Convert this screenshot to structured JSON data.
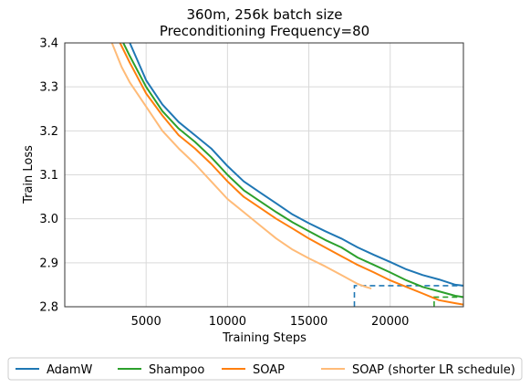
{
  "chart_data": {
    "type": "line",
    "title": [
      "360m, 256k batch size",
      "Preconditioning Frequency=80"
    ],
    "xlabel": "Training Steps",
    "ylabel": "Train Loss",
    "xlim": [
      0,
      24500
    ],
    "ylim": [
      2.8,
      3.4
    ],
    "xticks": [
      5000,
      10000,
      15000,
      20000
    ],
    "xtick_labels": [
      "5000",
      "10000",
      "15000",
      "20000"
    ],
    "yticks": [
      2.8,
      2.9,
      3.0,
      3.1,
      3.2,
      3.3,
      3.4
    ],
    "ytick_labels": [
      "2.8",
      "2.9",
      "3.0",
      "3.1",
      "3.2",
      "3.3",
      "3.4"
    ],
    "grid": true,
    "legend_position": "bottom",
    "series": [
      {
        "name": "AdamW",
        "color": "#1f77b4",
        "x": [
          4000,
          5000,
          6000,
          7000,
          8000,
          9000,
          10000,
          11000,
          12000,
          13000,
          14000,
          15000,
          16000,
          17000,
          18000,
          19000,
          20000,
          21000,
          22000,
          23000,
          24000,
          24500
        ],
        "y": [
          3.4,
          3.315,
          3.26,
          3.22,
          3.19,
          3.16,
          3.12,
          3.085,
          3.06,
          3.035,
          3.01,
          2.99,
          2.972,
          2.955,
          2.935,
          2.918,
          2.902,
          2.885,
          2.872,
          2.862,
          2.85,
          2.848
        ]
      },
      {
        "name": "Shampoo",
        "color": "#2ca02c",
        "x": [
          3600,
          4000,
          5000,
          6000,
          7000,
          8000,
          9000,
          10000,
          11000,
          12000,
          13000,
          14000,
          15000,
          16000,
          17000,
          18000,
          19000,
          20000,
          21000,
          22000,
          23000,
          24000,
          24500
        ],
        "y": [
          3.4,
          3.37,
          3.3,
          3.245,
          3.205,
          3.175,
          3.14,
          3.1,
          3.065,
          3.04,
          3.015,
          2.992,
          2.972,
          2.952,
          2.935,
          2.912,
          2.895,
          2.878,
          2.86,
          2.845,
          2.835,
          2.825,
          2.822
        ]
      },
      {
        "name": "SOAP",
        "color": "#ff7f0e",
        "x": [
          3400,
          4000,
          5000,
          6000,
          7000,
          8000,
          9000,
          10000,
          11000,
          12000,
          13000,
          14000,
          15000,
          16000,
          17000,
          18000,
          19000,
          20000,
          21000,
          22000,
          23000,
          24000,
          24500
        ],
        "y": [
          3.4,
          3.355,
          3.285,
          3.235,
          3.19,
          3.16,
          3.125,
          3.085,
          3.05,
          3.025,
          3.0,
          2.978,
          2.955,
          2.935,
          2.915,
          2.895,
          2.878,
          2.86,
          2.845,
          2.83,
          2.815,
          2.808,
          2.805
        ]
      },
      {
        "name": "SOAP (shorter LR schedule)",
        "color": "#ffbb78",
        "x": [
          2900,
          3500,
          4000,
          5000,
          6000,
          7000,
          8000,
          9000,
          10000,
          11000,
          12000,
          13000,
          14000,
          15000,
          16000,
          17000,
          17500,
          18000,
          18500,
          18800
        ],
        "y": [
          3.4,
          3.345,
          3.31,
          3.255,
          3.2,
          3.16,
          3.125,
          3.085,
          3.045,
          3.015,
          2.985,
          2.955,
          2.93,
          2.91,
          2.892,
          2.872,
          2.862,
          2.852,
          2.845,
          2.842
        ]
      }
    ],
    "annotations": [
      {
        "color": "#1f77b4",
        "style": "dashed",
        "points": [
          [
            17800,
            2.8
          ],
          [
            17800,
            2.848
          ],
          [
            24500,
            2.848
          ]
        ]
      },
      {
        "color": "#2ca02c",
        "style": "dashed",
        "points": [
          [
            22700,
            2.8
          ],
          [
            22700,
            2.822
          ],
          [
            24500,
            2.822
          ]
        ]
      }
    ]
  }
}
